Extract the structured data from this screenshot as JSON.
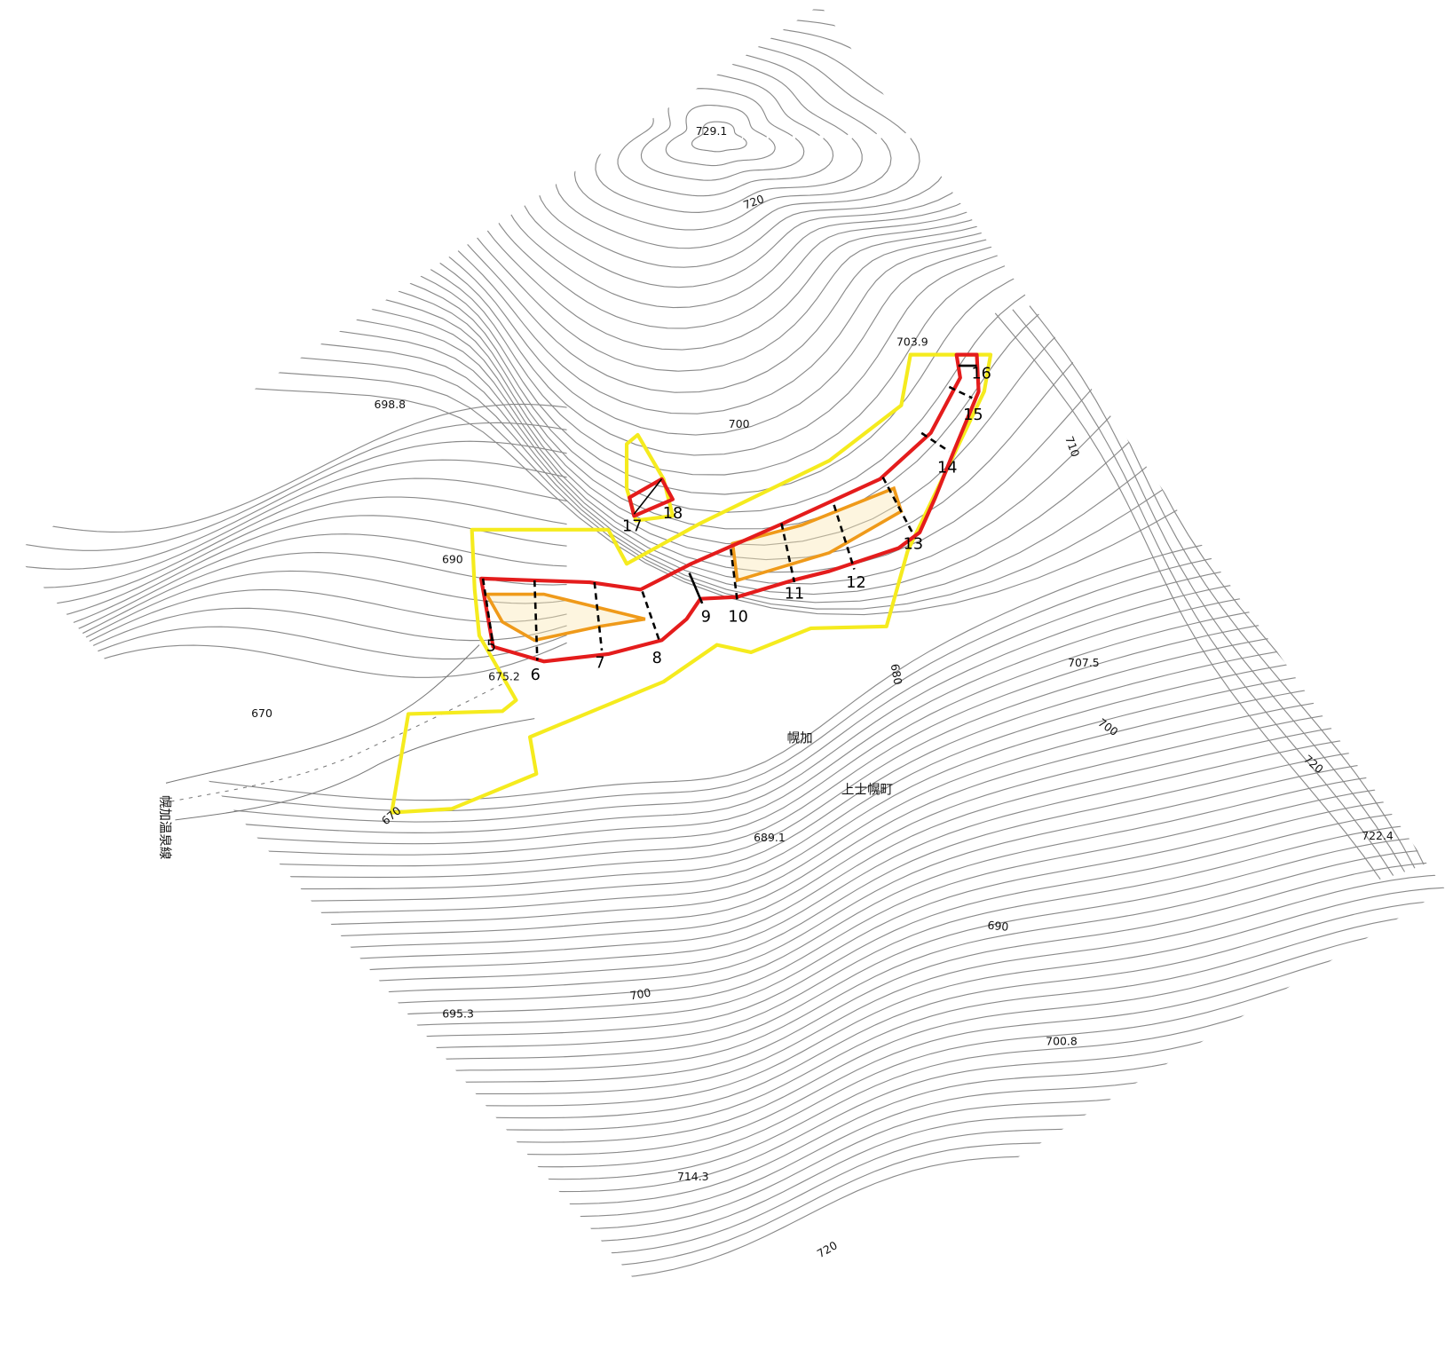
{
  "elevation_labels": [
    "729.1",
    "720",
    "703.9",
    "698.8",
    "700",
    "710",
    "690",
    "675.2",
    "670",
    "680",
    "707.5",
    "700",
    "720",
    "722.4",
    "689.1",
    "670",
    "690",
    "700",
    "695.3",
    "700.8",
    "714.3",
    "720"
  ],
  "place_labels": [
    "幌加",
    "上士幌町",
    "幌加温泉線"
  ],
  "section_numbers": [
    "5",
    "6",
    "7",
    "8",
    "9",
    "10",
    "11",
    "12",
    "13",
    "14",
    "15",
    "16",
    "17",
    "18"
  ]
}
